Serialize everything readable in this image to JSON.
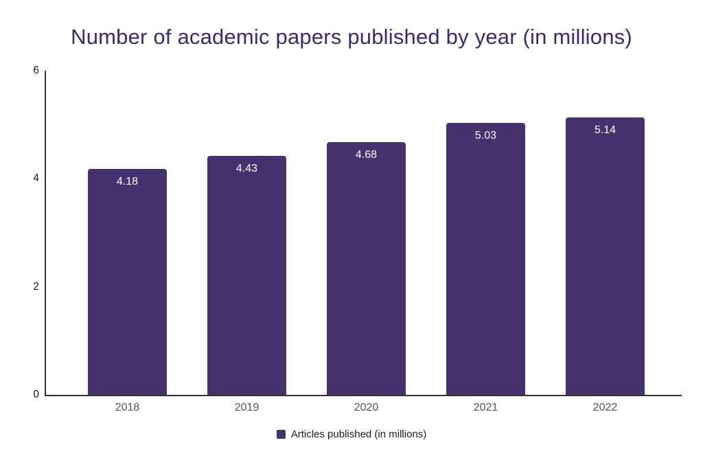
{
  "title": "Number of academic papers published by year (in millions)",
  "legend": {
    "label": "Articles published (in millions)"
  },
  "colors": {
    "bar": "#45316e",
    "title": "#3c2a6c",
    "axis": "#323232",
    "y_tick_label": "#1c1c1c",
    "x_tick_label": "#56516f",
    "value_label": "#ffffff",
    "background": "#ffffff"
  },
  "chart_data": {
    "type": "bar",
    "title": "Number of academic papers published by year (in millions)",
    "categories": [
      "2018",
      "2019",
      "2020",
      "2021",
      "2022"
    ],
    "values": [
      4.18,
      4.43,
      4.68,
      5.03,
      5.14
    ],
    "value_labels": [
      "4.18",
      "4.43",
      "4.68",
      "5.03",
      "5.14"
    ],
    "series_name": "Articles published (in millions)",
    "xlabel": "",
    "ylabel": "",
    "ylim": [
      0,
      6
    ],
    "yticks": [
      0,
      2,
      4,
      6
    ],
    "grid": false,
    "legend_position": "bottom",
    "value_labels_inside_bar": true
  }
}
